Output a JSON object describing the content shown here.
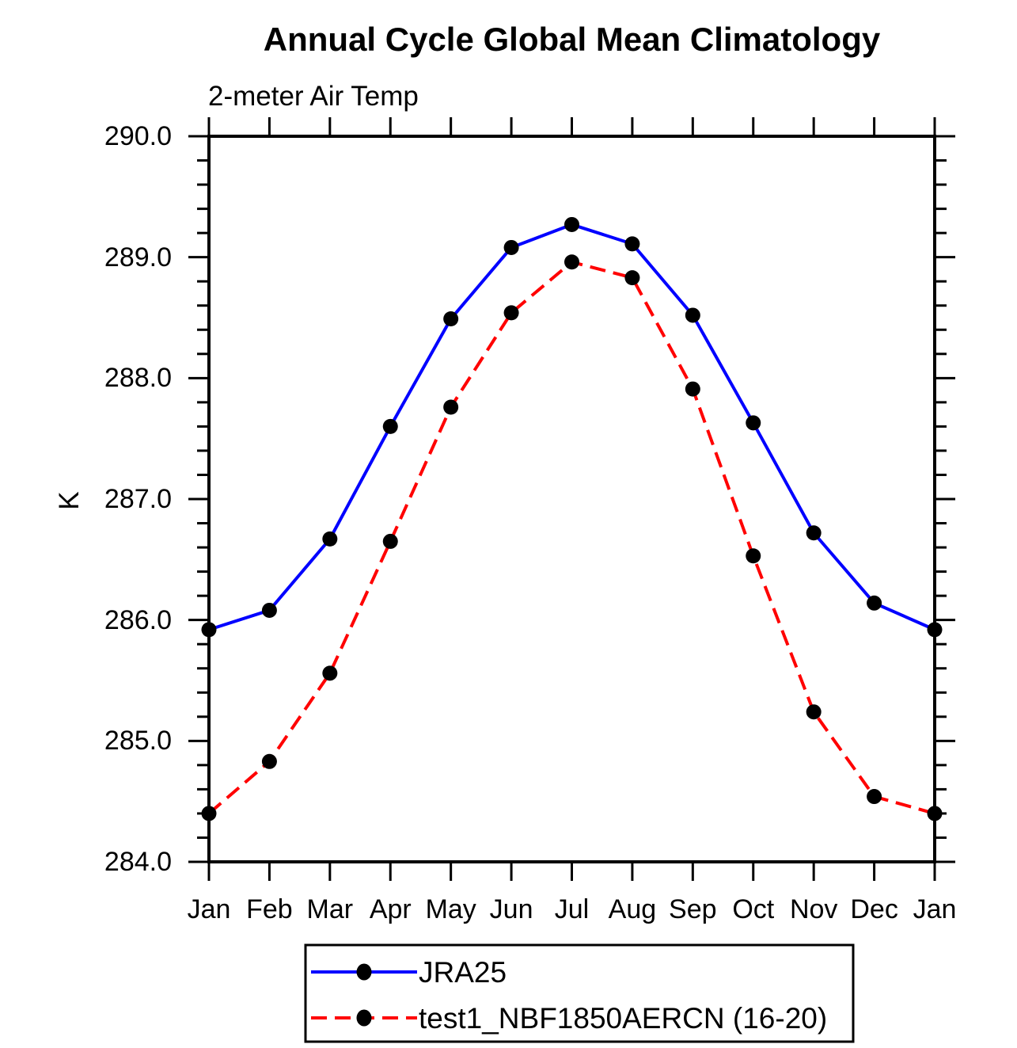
{
  "title": "Annual Cycle Global Mean Climatology",
  "subtitle": "2-meter Air Temp",
  "chart_data": {
    "type": "line",
    "x_categories": [
      "Jan",
      "Feb",
      "Mar",
      "Apr",
      "May",
      "Jun",
      "Jul",
      "Aug",
      "Sep",
      "Oct",
      "Nov",
      "Dec",
      "Jan"
    ],
    "xlabel": "",
    "ylabel": "K",
    "ylim": [
      284.0,
      290.0
    ],
    "y_major_step": 1.0,
    "y_minor_step": 0.2,
    "y_tick_labels": [
      "290.0",
      "289.0",
      "288.0",
      "287.0",
      "286.0",
      "285.0",
      "284.0"
    ],
    "grid": false,
    "axis_color": "#000000",
    "marker_color": "#000000",
    "legend_position": "bottom-center",
    "series": [
      {
        "name": "JRA25",
        "color": "#0000ff",
        "line_style": "solid",
        "marker": "filled-circle",
        "values": [
          285.92,
          286.08,
          286.67,
          287.6,
          288.49,
          289.08,
          289.27,
          289.11,
          288.52,
          287.63,
          286.72,
          286.14,
          285.92
        ]
      },
      {
        "name": "test1_NBF1850AERCN (16-20)",
        "color": "#ff0000",
        "line_style": "dashed",
        "marker": "filled-circle",
        "values": [
          284.4,
          284.83,
          285.56,
          286.65,
          287.76,
          288.54,
          288.96,
          288.83,
          287.91,
          286.53,
          285.24,
          284.54,
          284.4
        ]
      }
    ]
  }
}
